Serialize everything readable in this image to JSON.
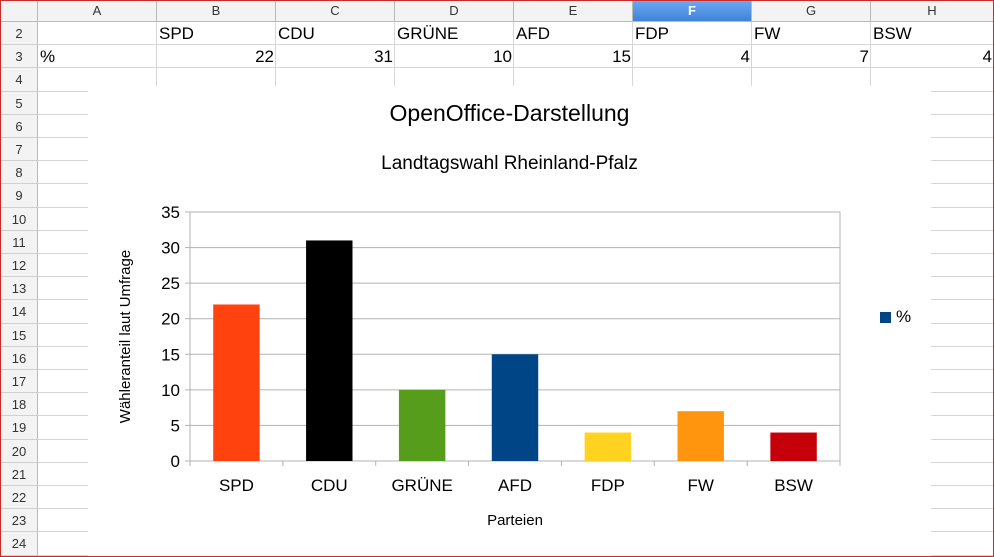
{
  "sheet": {
    "columns": [
      "A",
      "B",
      "C",
      "D",
      "E",
      "F",
      "G",
      "H"
    ],
    "selected_column": "F",
    "rows": [
      "2",
      "3",
      "4",
      "5",
      "6",
      "7",
      "8",
      "9",
      "10",
      "11",
      "12",
      "13",
      "14",
      "15",
      "16",
      "17",
      "18",
      "19",
      "20",
      "21",
      "22",
      "23",
      "24"
    ],
    "row2": [
      "",
      "SPD",
      "CDU",
      "GRÜNE",
      "AFD",
      "FDP",
      "FW",
      "BSW"
    ],
    "row3": [
      "%",
      "22",
      "31",
      "10",
      "15",
      "4",
      "7",
      "4"
    ]
  },
  "chart": {
    "main_title": "OpenOffice-Darstellung",
    "subtitle": "Landtagswahl Rheinland-Pfalz",
    "legend_label": "%",
    "legend_color": "#004586"
  },
  "chart_data": {
    "type": "bar",
    "title": "OpenOffice-Darstellung",
    "subtitle": "Landtagswahl Rheinland-Pfalz",
    "categories": [
      "SPD",
      "CDU",
      "GRÜNE",
      "AFD",
      "FDP",
      "FW",
      "BSW"
    ],
    "series": [
      {
        "name": "%",
        "values": [
          22,
          31,
          10,
          15,
          4,
          7,
          4
        ]
      }
    ],
    "colors": [
      "#ff420e",
      "#000000",
      "#579d1c",
      "#004586",
      "#ffd320",
      "#ff950e",
      "#c5000b"
    ],
    "xlabel": "Parteien",
    "ylabel": "Wähleranteil laut Umfrage",
    "ylim": [
      0,
      35
    ],
    "yticks": [
      "0",
      "5",
      "10",
      "15",
      "20",
      "25",
      "30",
      "35"
    ],
    "grid": true,
    "legend": "right"
  }
}
